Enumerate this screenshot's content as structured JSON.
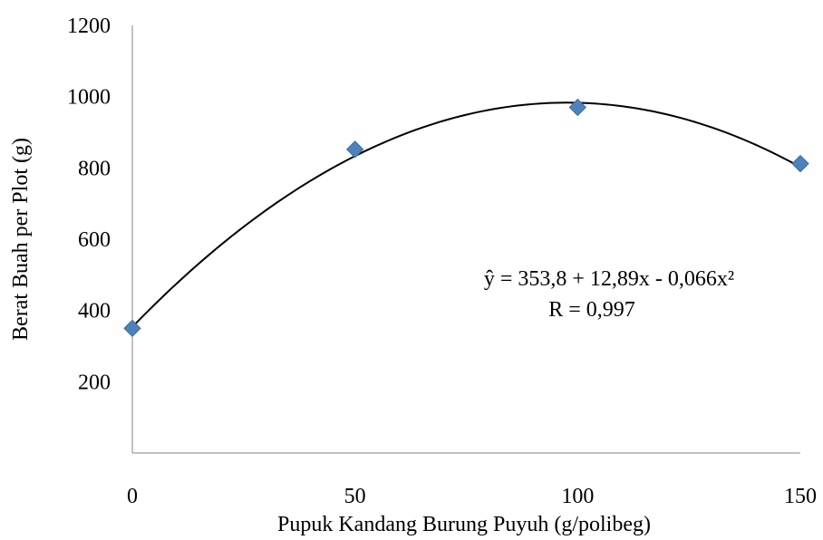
{
  "chart_data": {
    "type": "scatter",
    "title": "",
    "xlabel": "Pupuk Kandang Burung Puyuh (g/polibeg)",
    "ylabel": "Berat Buah per Plot (g)",
    "x_ticks": [
      "0",
      "50",
      "100",
      "150"
    ],
    "y_ticks": [
      "200",
      "400",
      "600",
      "800",
      "1000",
      "1200"
    ],
    "xlim": [
      0,
      150
    ],
    "ylim": [
      0,
      1200
    ],
    "grid": false,
    "legend": "none",
    "series": [
      {
        "x": [
          0,
          50,
          100,
          150
        ],
        "y": [
          350,
          852,
          970,
          812
        ],
        "marker": "diamond",
        "color": "#4F81BD"
      }
    ],
    "trendline": {
      "type": "polynomial",
      "coefficients": [
        353.8,
        12.89,
        -0.066
      ],
      "color": "#000000"
    },
    "annotations": [
      "ŷ = 353,8 + 12,89x - 0,066x²",
      "R = 0,997"
    ]
  }
}
